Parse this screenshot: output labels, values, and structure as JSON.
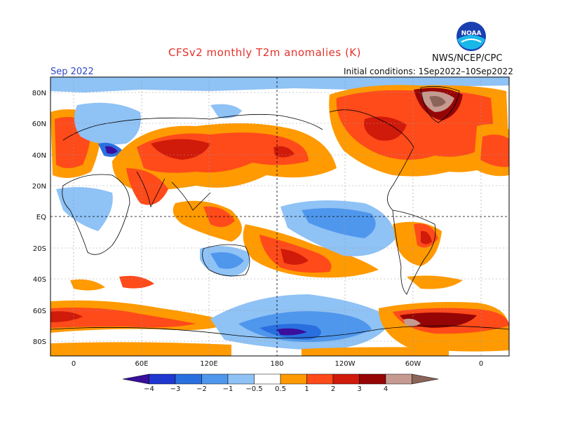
{
  "header": {
    "title": "CFSv2 monthly T2m anomalies (K)",
    "agency": "NWS/NCEP/CPC",
    "month": "Sep 2022",
    "initial_conditions": "Initial conditions: 1Sep2022–10Sep2022"
  },
  "logo": {
    "icon": "noaa-logo-icon",
    "text": "NOAA"
  },
  "lat_labels": [
    "80N",
    "60N",
    "40N",
    "20N",
    "EQ",
    "20S",
    "40S",
    "60S",
    "80S"
  ],
  "lon_labels": [
    "0",
    "60E",
    "120E",
    "180",
    "120W",
    "60W",
    "0"
  ],
  "colorbar": {
    "labels": [
      "−4",
      "−3",
      "−2",
      "−1",
      "−0.5",
      "0.5",
      "1",
      "2",
      "3",
      "4"
    ],
    "colors": [
      "#3a0f9c",
      "#2038d0",
      "#2a6fe0",
      "#4f97ec",
      "#8fc2f5",
      "#ffffff",
      "#ff9a00",
      "#ff4a1a",
      "#d01a0a",
      "#960505",
      "#c59a90",
      "#8a6458"
    ]
  },
  "colors": {
    "title": "#e4322a",
    "month": "#2f48c8"
  }
}
